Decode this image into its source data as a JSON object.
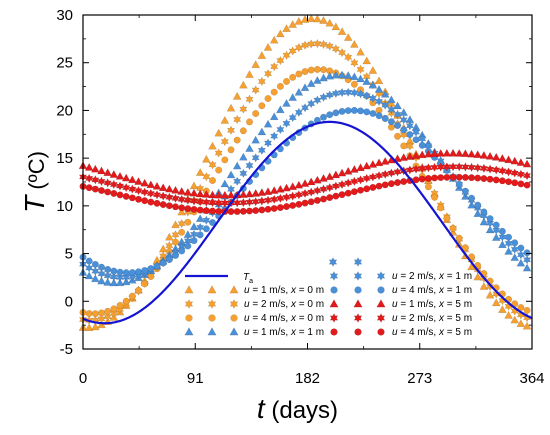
{
  "chart_data": {
    "type": "scatter",
    "xlabel_symbol": "t",
    "xlabel_unit": "(days)",
    "ylabel_symbol": "T",
    "ylabel_unit": "(ºC)",
    "xlim": [
      0,
      364
    ],
    "ylim": [
      -5,
      30
    ],
    "xticks": [
      0,
      91,
      182,
      273,
      364
    ],
    "yticks": [
      -5,
      0,
      5,
      10,
      15,
      20,
      25,
      30
    ],
    "grid": false,
    "legend_position": "bottom-center",
    "colors": {
      "orange": "#F5A030",
      "blue": "#4A90D9",
      "red": "#E31A1C",
      "line": "#1414D2"
    },
    "line_series": {
      "name": "T",
      "name_sub": "a",
      "mean": 8.25,
      "amplitude": 10.55,
      "phase_day": 200,
      "period": 365
    },
    "series": [
      {
        "label": "u = 1 m/s, x = 0 m",
        "marker": "triangle",
        "color": "orange",
        "mean": 13.4,
        "amplitude": 16.2,
        "phase_day": 186
      },
      {
        "label": "u = 2 m/s, x = 0 m",
        "marker": "star",
        "color": "orange",
        "mean": 12.5,
        "amplitude": 14.5,
        "phase_day": 189
      },
      {
        "label": "u = 4 m/s, x = 0 m",
        "marker": "circle",
        "color": "orange",
        "mean": 11.5,
        "amplitude": 12.8,
        "phase_day": 191
      },
      {
        "label": "u = 1 m/s, x = 1 m",
        "marker": "triangle",
        "color": "blue",
        "mean": 12.8,
        "amplitude": 10.9,
        "phase_day": 209
      },
      {
        "label": "u = 2 m/s, x = 1 m",
        "marker": "star",
        "color": "blue",
        "mean": 12.2,
        "amplitude": 9.7,
        "phase_day": 214
      },
      {
        "label": "u = 4 m/s, x = 1 m",
        "marker": "circle",
        "color": "blue",
        "mean": 11.5,
        "amplitude": 8.5,
        "phase_day": 219
      },
      {
        "label": "u = 1 m/s, x = 5 m",
        "marker": "triangle",
        "color": "red",
        "mean": 13.3,
        "amplitude": 2.2,
        "phase_day": 298
      },
      {
        "label": "u = 2 m/s, x = 5 m",
        "marker": "star",
        "color": "red",
        "mean": 12.2,
        "amplitude": 1.9,
        "phase_day": 300
      },
      {
        "label": "u = 4 m/s, x = 5 m",
        "marker": "circle",
        "color": "red",
        "mean": 11.2,
        "amplitude": 1.8,
        "phase_day": 302
      }
    ],
    "sample_days_step": 5
  }
}
